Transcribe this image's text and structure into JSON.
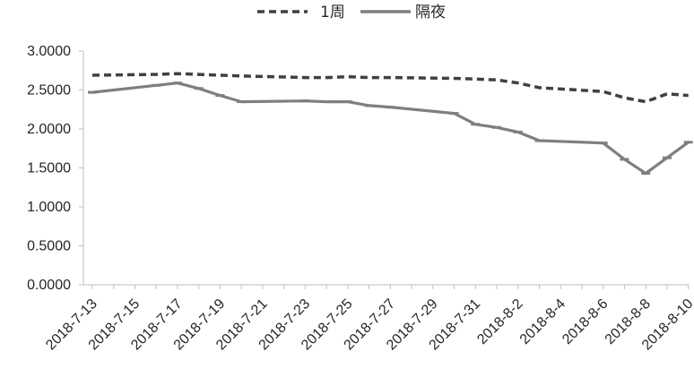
{
  "chart_data": {
    "type": "line",
    "title": "",
    "xlabel": "",
    "ylabel": "",
    "ylim": [
      0,
      3
    ],
    "ytick_step": 0.5,
    "ytick_format": "0.0000",
    "x_dates": [
      "2018-07-13",
      "2018-07-14",
      "2018-07-15",
      "2018-07-16",
      "2018-07-17",
      "2018-07-18",
      "2018-07-19",
      "2018-07-20",
      "2018-07-21",
      "2018-07-22",
      "2018-07-23",
      "2018-07-24",
      "2018-07-25",
      "2018-07-26",
      "2018-07-27",
      "2018-07-28",
      "2018-07-29",
      "2018-07-30",
      "2018-07-31",
      "2018-08-01",
      "2018-08-02",
      "2018-08-03",
      "2018-08-04",
      "2018-08-05",
      "2018-08-06",
      "2018-08-07",
      "2018-08-08",
      "2018-08-09",
      "2018-08-10"
    ],
    "x_tick_labels": [
      "2018-7-13",
      "2018-7-15",
      "2018-7-17",
      "2018-7-19",
      "2018-7-21",
      "2018-7-23",
      "2018-7-25",
      "2018-7-27",
      "2018-7-29",
      "2018-7-31",
      "2018-8-2",
      "2018-8-4",
      "2018-8-6",
      "2018-8-8",
      "2018-8-10"
    ],
    "grid": false,
    "legend_position": "top-center",
    "series": [
      {
        "name": "1周",
        "style": "dashed",
        "color": "#404040",
        "points": [
          [
            "2018-07-13",
            2.69
          ],
          [
            "2018-07-16",
            2.7
          ],
          [
            "2018-07-17",
            2.71
          ],
          [
            "2018-07-18",
            2.7
          ],
          [
            "2018-07-19",
            2.69
          ],
          [
            "2018-07-20",
            2.68
          ],
          [
            "2018-07-23",
            2.66
          ],
          [
            "2018-07-24",
            2.66
          ],
          [
            "2018-07-25",
            2.67
          ],
          [
            "2018-07-26",
            2.66
          ],
          [
            "2018-07-27",
            2.66
          ],
          [
            "2018-07-30",
            2.65
          ],
          [
            "2018-07-31",
            2.64
          ],
          [
            "2018-08-01",
            2.63
          ],
          [
            "2018-08-02",
            2.59
          ],
          [
            "2018-08-03",
            2.53
          ],
          [
            "2018-08-06",
            2.48
          ],
          [
            "2018-08-07",
            2.4
          ],
          [
            "2018-08-08",
            2.35
          ],
          [
            "2018-08-09",
            2.45
          ],
          [
            "2018-08-10",
            2.43
          ]
        ]
      },
      {
        "name": "隔夜",
        "style": "solid",
        "color": "#7f7f7f",
        "points": [
          [
            "2018-07-13",
            2.47
          ],
          [
            "2018-07-16",
            2.56
          ],
          [
            "2018-07-17",
            2.59
          ],
          [
            "2018-07-18",
            2.52
          ],
          [
            "2018-07-19",
            2.43
          ],
          [
            "2018-07-20",
            2.35
          ],
          [
            "2018-07-23",
            2.36
          ],
          [
            "2018-07-24",
            2.35
          ],
          [
            "2018-07-25",
            2.35
          ],
          [
            "2018-07-26",
            2.3
          ],
          [
            "2018-07-27",
            2.28
          ],
          [
            "2018-07-30",
            2.2
          ],
          [
            "2018-07-31",
            2.06
          ],
          [
            "2018-08-01",
            2.02
          ],
          [
            "2018-08-02",
            1.96
          ],
          [
            "2018-08-03",
            1.85
          ],
          [
            "2018-08-06",
            1.82
          ],
          [
            "2018-08-07",
            1.61
          ],
          [
            "2018-08-08",
            1.43
          ],
          [
            "2018-08-09",
            1.63
          ],
          [
            "2018-08-10",
            1.83
          ]
        ]
      }
    ]
  }
}
